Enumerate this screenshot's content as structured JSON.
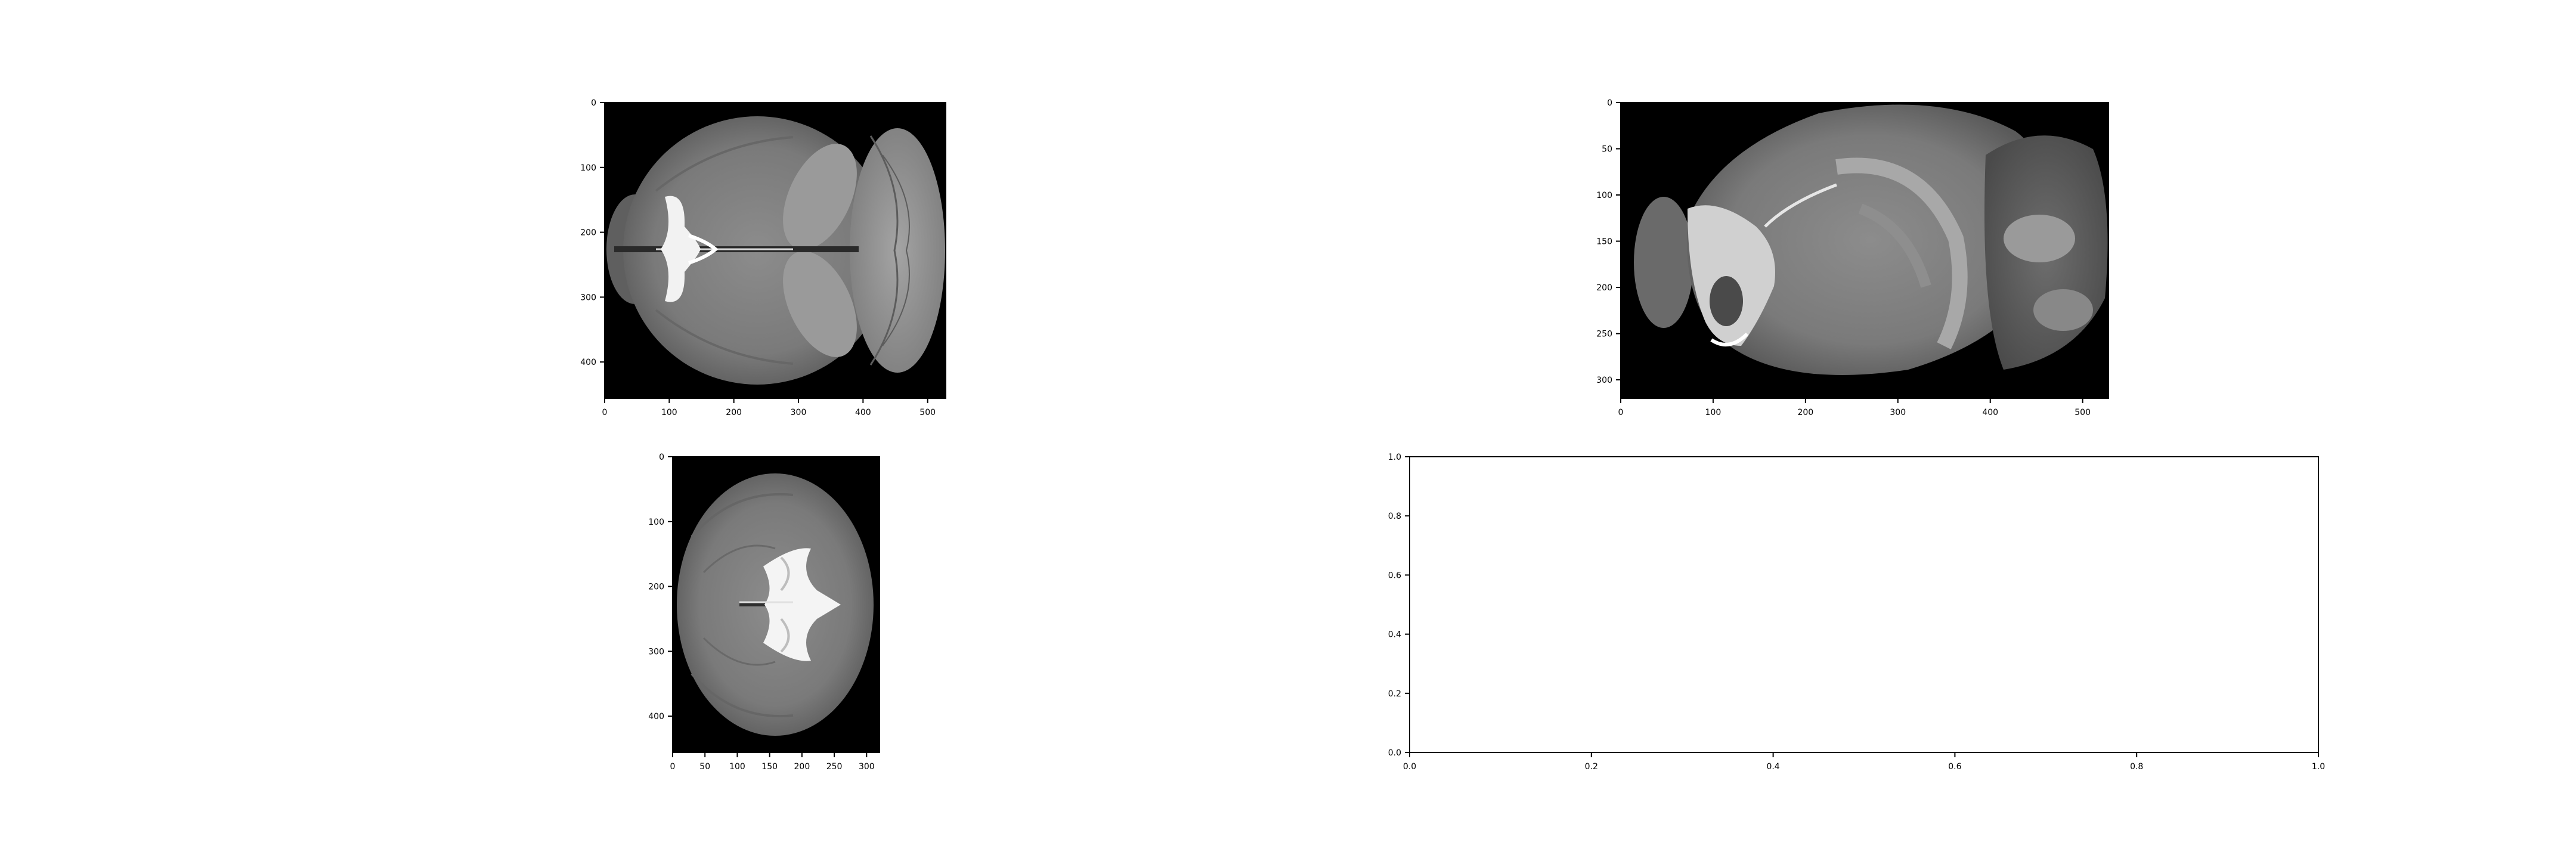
{
  "figure": {
    "background": "#ffffff",
    "image_colormap": "gray",
    "image_background": "#000000"
  },
  "chart_data": [
    {
      "type": "image",
      "view": "axial",
      "xlim": [
        0,
        528
      ],
      "ylim": [
        456,
        0
      ],
      "xticks": [
        0,
        100,
        200,
        300,
        400,
        500
      ],
      "yticks": [
        0,
        100,
        200,
        300,
        400
      ],
      "title": "",
      "xlabel": "",
      "ylabel": ""
    },
    {
      "type": "image",
      "view": "sagittal",
      "xlim": [
        0,
        528
      ],
      "ylim": [
        320,
        0
      ],
      "xticks": [
        0,
        100,
        200,
        300,
        400,
        500
      ],
      "yticks": [
        0,
        50,
        100,
        150,
        200,
        250,
        300
      ],
      "title": "",
      "xlabel": "",
      "ylabel": ""
    },
    {
      "type": "image",
      "view": "coronal",
      "xlim": [
        0,
        320
      ],
      "ylim": [
        456,
        0
      ],
      "xticks": [
        0,
        50,
        100,
        150,
        200,
        250,
        300
      ],
      "yticks": [
        0,
        100,
        200,
        300,
        400
      ],
      "title": "",
      "xlabel": "",
      "ylabel": ""
    },
    {
      "type": "empty",
      "xlim": [
        0,
        1
      ],
      "ylim": [
        0,
        1
      ],
      "xticks": [
        "0.0",
        "0.2",
        "0.4",
        "0.6",
        "0.8",
        "1.0"
      ],
      "yticks": [
        "0.0",
        "0.2",
        "0.4",
        "0.6",
        "0.8",
        "1.0"
      ],
      "title": "",
      "xlabel": "",
      "ylabel": ""
    }
  ]
}
